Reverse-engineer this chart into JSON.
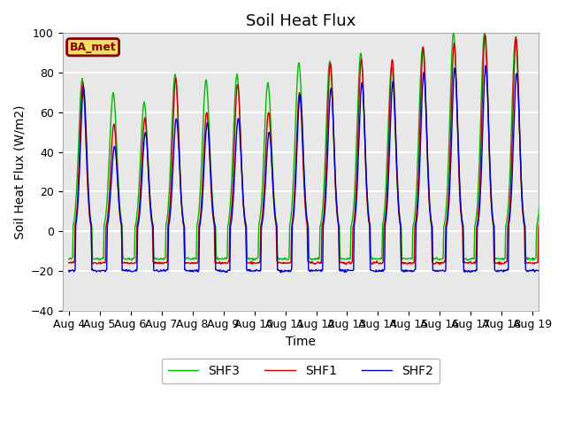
{
  "title": "Soil Heat Flux",
  "ylabel": "Soil Heat Flux (W/m2)",
  "xlabel": "Time",
  "ylim": [
    -40,
    100
  ],
  "legend_label": "BA_met",
  "series_labels": [
    "SHF1",
    "SHF2",
    "SHF3"
  ],
  "series_colors": [
    "#cc0000",
    "#0000cc",
    "#00bb00"
  ],
  "background_color": "#ffffff",
  "axes_bg_color": "#e8e8e8",
  "grid_color": "#ffffff",
  "title_fontsize": 13,
  "label_fontsize": 10,
  "tick_fontsize": 9,
  "day_peaks_shf1": [
    75,
    54,
    57,
    77,
    60,
    75,
    60,
    70,
    85,
    87,
    87,
    93,
    95,
    100,
    98
  ],
  "day_peaks_shf2": [
    72,
    43,
    50,
    57,
    55,
    57,
    50,
    69,
    72,
    75,
    75,
    80,
    82,
    83,
    80
  ],
  "day_peaks_shf3": [
    77,
    70,
    65,
    79,
    76,
    79,
    75,
    85,
    86,
    90,
    83,
    93,
    100,
    100,
    97
  ],
  "night_base_shf1": -16,
  "night_base_shf2": -20,
  "night_base_shf3": -14
}
